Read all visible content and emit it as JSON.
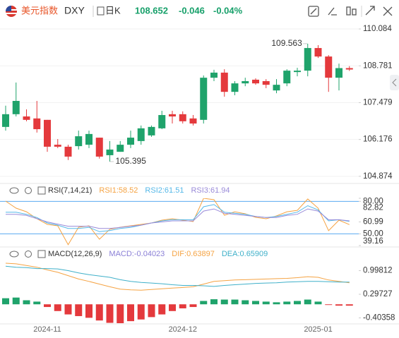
{
  "header": {
    "title": "美元指数",
    "symbol": "DXY",
    "period": "日K",
    "price": "108.652",
    "change": "-0.046",
    "change_pct": "-0.04%"
  },
  "chart_data": [
    {
      "type": "candlestick",
      "categories": [
        null,
        null,
        null,
        null,
        "2024-11",
        null,
        null,
        null,
        null,
        null,
        null,
        null,
        null,
        null,
        null,
        null,
        null,
        "2024-12",
        null,
        null,
        null,
        null,
        null,
        null,
        null,
        null,
        null,
        null,
        null,
        null,
        "2025-01",
        null,
        null,
        null
      ],
      "open": [
        106.62,
        107.07,
        106.99,
        106.92,
        106.87,
        105.99,
        105.92,
        105.94,
        105.99,
        106.24,
        105.62,
        105.74,
        105.99,
        106.12,
        106.32,
        106.57,
        107.07,
        107.07,
        106.92,
        106.87,
        108.36,
        108.54,
        107.86,
        108.16,
        108.29,
        108.24,
        107.91,
        108.16,
        108.56,
        108.61,
        109.41,
        109.11,
        108.36,
        108.7
      ],
      "close": [
        107.07,
        107.54,
        106.87,
        106.54,
        105.92,
        105.92,
        105.57,
        106.29,
        106.37,
        105.57,
        105.82,
        105.99,
        106.24,
        106.57,
        106.62,
        107.04,
        106.99,
        106.82,
        106.74,
        108.36,
        108.54,
        107.86,
        108.16,
        108.24,
        108.16,
        108.11,
        108.11,
        108.61,
        108.61,
        109.41,
        109.11,
        108.36,
        108.7,
        108.65
      ],
      "high": [
        107.37,
        108.19,
        107.24,
        107.54,
        106.87,
        106.19,
        105.99,
        106.49,
        106.49,
        106.24,
        106.12,
        106.12,
        106.49,
        106.67,
        106.67,
        107.19,
        107.19,
        107.17,
        107.04,
        108.44,
        108.64,
        108.66,
        108.24,
        108.36,
        108.34,
        108.31,
        108.31,
        108.66,
        108.71,
        109.563,
        109.51,
        109.16,
        108.86,
        108.77
      ],
      "low": [
        106.49,
        106.99,
        106.82,
        106.42,
        105.74,
        105.87,
        105.45,
        105.82,
        105.87,
        105.5,
        105.395,
        105.74,
        105.87,
        105.99,
        106.27,
        106.54,
        106.74,
        106.74,
        106.67,
        106.74,
        108.24,
        107.69,
        107.74,
        108.06,
        108.11,
        107.99,
        107.81,
        108.06,
        108.41,
        108.41,
        109.06,
        107.86,
        107.91,
        108.6
      ],
      "up_color": "#1fa36b",
      "down_color": "#e4393c",
      "ylim": [
        104.67,
        110.36
      ],
      "yticks": [
        {
          "value": 110.084,
          "label": "110.084"
        },
        {
          "value": 108.781,
          "label": "108.781"
        },
        {
          "value": 107.479,
          "label": "107.479"
        },
        {
          "value": 106.176,
          "label": "106.176"
        },
        {
          "value": 104.874,
          "label": "104.874"
        }
      ],
      "annotations": [
        {
          "value": 109.563,
          "label": "109.563"
        },
        {
          "value": 105.395,
          "label": "105.395"
        }
      ],
      "grid": true
    },
    {
      "type": "line",
      "title": "RSI(7,14,21)",
      "series": [
        {
          "name": "RSI1:58.52",
          "color": "#f5a343",
          "values": [
            80.2,
            73.7,
            70.4,
            63.9,
            58.7,
            57.4,
            40,
            56.1,
            57.4,
            45,
            54.2,
            56.1,
            57.4,
            58.7,
            60.0,
            62.6,
            63.9,
            62.6,
            61.3,
            82.8,
            81.5,
            67.2,
            70.4,
            68.5,
            65.2,
            63.9,
            66.5,
            70.4,
            71.7,
            82.2,
            73.7,
            52.9,
            62.6,
            58.52
          ]
        },
        {
          "name": "RSI2:61.51",
          "color": "#55b8e8",
          "values": [
            70,
            70,
            68,
            65,
            60,
            58,
            55,
            55,
            56,
            52,
            53,
            55,
            56,
            58,
            60,
            62,
            63,
            63,
            63,
            75,
            77,
            70,
            69,
            68,
            66,
            65,
            66,
            68,
            70,
            76,
            72,
            62,
            63,
            61.51
          ]
        },
        {
          "name": "RSI3:61.94",
          "color": "#9a8bd9",
          "values": [
            68,
            68,
            67,
            64,
            61,
            59,
            57,
            57,
            57,
            55,
            55,
            56,
            57,
            58,
            60,
            61,
            62,
            62,
            62,
            71,
            73,
            69,
            68,
            67,
            66,
            65,
            65,
            67,
            68,
            73,
            71,
            63,
            63,
            61.94
          ]
        }
      ],
      "ylim": [
        39.16,
        82.82
      ],
      "yticks": [
        {
          "value": 80,
          "label": "80.00"
        },
        82.82,
        60.99,
        {
          "value": 50,
          "label": "50.00"
        },
        39.16
      ],
      "hlines": [
        80,
        50
      ],
      "hline_color": "#5aa9f0"
    },
    {
      "type": "macd",
      "title": "MACD(12,26,9)",
      "histogram": {
        "name": "MACD:-0.04023",
        "color": "#8a7fd6",
        "up_color": "#1fa36b",
        "down_color": "#e4393c",
        "values": [
          0.18,
          0.2,
          0.12,
          0.08,
          -0.08,
          -0.2,
          -0.3,
          -0.35,
          -0.4,
          -0.48,
          -0.55,
          -0.56,
          -0.5,
          -0.45,
          -0.38,
          -0.3,
          -0.2,
          -0.12,
          -0.08,
          0.1,
          0.15,
          0.14,
          0.14,
          0.12,
          0.1,
          0.08,
          0.06,
          0.08,
          0.1,
          0.14,
          0.08,
          -0.02,
          -0.04,
          -0.04023
        ]
      },
      "series": [
        {
          "name": "DIF:0.63897",
          "color": "#f5a343",
          "values": [
            1.22,
            1.2,
            1.15,
            1.1,
            1.02,
            0.95,
            0.85,
            0.75,
            0.68,
            0.6,
            0.52,
            0.45,
            0.43,
            0.42,
            0.44,
            0.46,
            0.48,
            0.5,
            0.52,
            0.6,
            0.68,
            0.7,
            0.72,
            0.73,
            0.74,
            0.75,
            0.76,
            0.77,
            0.79,
            0.82,
            0.8,
            0.72,
            0.68,
            0.63897
          ]
        },
        {
          "name": "DEA:0.65909",
          "color": "#3fb0c9",
          "values": [
            1.13,
            1.1,
            1.09,
            1.06,
            1.06,
            1.05,
            1.0,
            0.93,
            0.88,
            0.84,
            0.8,
            0.73,
            0.68,
            0.65,
            0.63,
            0.61,
            0.58,
            0.56,
            0.56,
            0.55,
            0.53,
            0.56,
            0.58,
            0.6,
            0.62,
            0.63,
            0.64,
            0.66,
            0.67,
            0.68,
            0.68,
            0.67,
            0.66,
            0.65909
          ]
        }
      ],
      "ylim": [
        -0.56,
        1.24
      ],
      "yticks": [
        0.99812,
        0.29727,
        -0.40358
      ]
    }
  ]
}
